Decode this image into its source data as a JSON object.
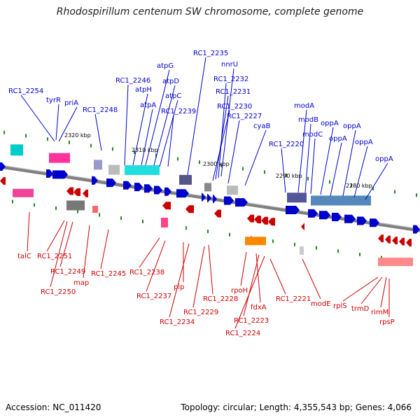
{
  "title": "Rhodospirillum centenum SW chromosome, complete genome",
  "footer": {
    "accession": "Accession: NC_011420",
    "summary": "Topology: circular; Length: 4,355,543 bp; Genes: 4,066"
  },
  "colors": {
    "forward": "#0000cc",
    "reverse": "#cc0000",
    "backbone": "#808080",
    "marker": "#228822"
  },
  "ticks": [
    {
      "label": "2320 kbp"
    },
    {
      "label": "2310 kbp"
    },
    {
      "label": "2300 kbp"
    },
    {
      "label": "2290 kbp"
    },
    {
      "label": "2280 kbp"
    }
  ],
  "forward_genes": [
    {
      "label": "RC1_2254"
    },
    {
      "label": "tyrR"
    },
    {
      "label": "priA"
    },
    {
      "label": "RC1_2248"
    },
    {
      "label": "RC1_2246"
    },
    {
      "label": "atpH"
    },
    {
      "label": "atpG"
    },
    {
      "label": "atpA"
    },
    {
      "label": "atpD"
    },
    {
      "label": "atpC"
    },
    {
      "label": "RC1_2239"
    },
    {
      "label": "RC1_2235"
    },
    {
      "label": "nnrU"
    },
    {
      "label": "RC1_2232"
    },
    {
      "label": "RC1_2231"
    },
    {
      "label": "RC1_2230"
    },
    {
      "label": "RC1_2227"
    },
    {
      "label": "cyaB"
    },
    {
      "label": "RC1_2220"
    },
    {
      "label": "modA"
    },
    {
      "label": "modB"
    },
    {
      "label": "modC"
    },
    {
      "label": "oppA"
    },
    {
      "label": "oppA"
    },
    {
      "label": "oppA"
    },
    {
      "label": "oppA"
    },
    {
      "label": "oppA"
    }
  ],
  "reverse_genes": [
    {
      "label": "talC"
    },
    {
      "label": "RC1_2251"
    },
    {
      "label": "RC1_2249"
    },
    {
      "label": "RC1_2250"
    },
    {
      "label": "map"
    },
    {
      "label": "RC1_2245"
    },
    {
      "label": "RC1_2238"
    },
    {
      "label": "RC1_2237"
    },
    {
      "label": "pip"
    },
    {
      "label": "RC1_2234"
    },
    {
      "label": "RC1_2228"
    },
    {
      "label": "RC1_2229"
    },
    {
      "label": "rpoH"
    },
    {
      "label": "fdxA"
    },
    {
      "label": "RC1_2223"
    },
    {
      "label": "RC1_2224"
    },
    {
      "label": "RC1_2221"
    },
    {
      "label": "modE"
    },
    {
      "label": "rplS"
    },
    {
      "label": "trmD"
    },
    {
      "label": "rimM"
    },
    {
      "label": "rpsP"
    }
  ]
}
